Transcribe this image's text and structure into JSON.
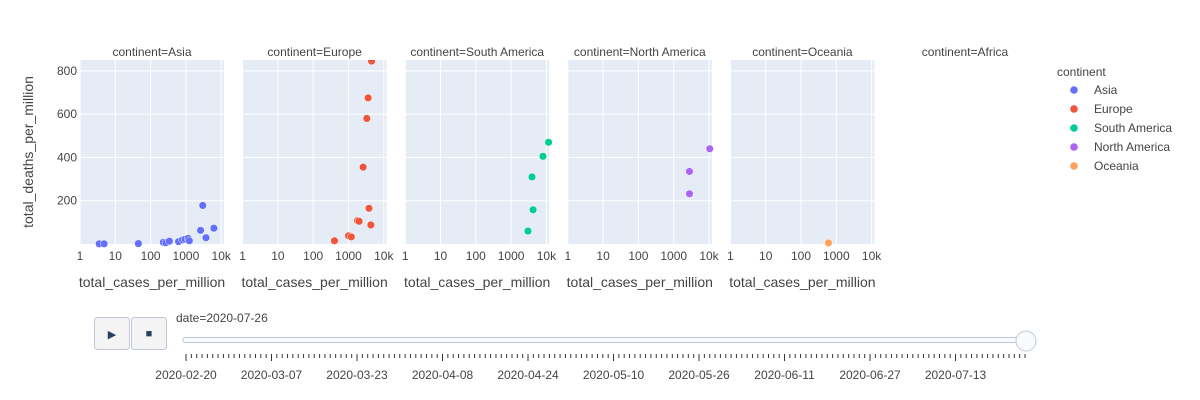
{
  "chart_data": {
    "type": "scatter",
    "x_scale": "log",
    "y_scale": "linear",
    "xlabel": "total_cases_per_million",
    "ylabel": "total_deaths_per_million",
    "xlim": [
      1,
      12000
    ],
    "ylim": [
      0,
      850
    ],
    "x_ticks": [
      {
        "value": 1,
        "label": "1"
      },
      {
        "value": 10,
        "label": "10"
      },
      {
        "value": 100,
        "label": "100"
      },
      {
        "value": 1000,
        "label": "1000"
      },
      {
        "value": 10000,
        "label": "10k"
      }
    ],
    "y_ticks": [
      {
        "value": 200,
        "label": "200"
      },
      {
        "value": 400,
        "label": "400"
      },
      {
        "value": 600,
        "label": "600"
      },
      {
        "value": 800,
        "label": "800"
      }
    ],
    "grid": true,
    "legend_title": "continent",
    "legend_position": "right",
    "panels": [
      {
        "title": "continent=Asia",
        "name": "Asia",
        "color": "#636efa",
        "points": [
          {
            "x": 3.5,
            "y": 1
          },
          {
            "x": 4.8,
            "y": 1
          },
          {
            "x": 45,
            "y": 2
          },
          {
            "x": 230,
            "y": 8
          },
          {
            "x": 270,
            "y": 6
          },
          {
            "x": 340,
            "y": 13
          },
          {
            "x": 620,
            "y": 11
          },
          {
            "x": 800,
            "y": 19
          },
          {
            "x": 950,
            "y": 22
          },
          {
            "x": 1150,
            "y": 26
          },
          {
            "x": 1250,
            "y": 15
          },
          {
            "x": 2600,
            "y": 63
          },
          {
            "x": 3000,
            "y": 178
          },
          {
            "x": 3700,
            "y": 29
          },
          {
            "x": 6200,
            "y": 73
          }
        ]
      },
      {
        "title": "continent=Europe",
        "name": "Europe",
        "color": "#EF553B",
        "points": [
          {
            "x": 400,
            "y": 15
          },
          {
            "x": 1000,
            "y": 38
          },
          {
            "x": 1200,
            "y": 33
          },
          {
            "x": 1800,
            "y": 108
          },
          {
            "x": 2000,
            "y": 105
          },
          {
            "x": 2600,
            "y": 355
          },
          {
            "x": 3300,
            "y": 580
          },
          {
            "x": 3600,
            "y": 675
          },
          {
            "x": 3800,
            "y": 165
          },
          {
            "x": 4300,
            "y": 88
          },
          {
            "x": 4500,
            "y": 845
          }
        ]
      },
      {
        "title": "continent=South America",
        "name": "South America",
        "color": "#00cc96",
        "points": [
          {
            "x": 3000,
            "y": 60
          },
          {
            "x": 3900,
            "y": 310
          },
          {
            "x": 4200,
            "y": 158
          },
          {
            "x": 8000,
            "y": 405
          },
          {
            "x": 11500,
            "y": 470
          }
        ]
      },
      {
        "title": "continent=North America",
        "name": "North America",
        "color": "#ab63fa",
        "points": [
          {
            "x": 2800,
            "y": 335
          },
          {
            "x": 2800,
            "y": 232
          },
          {
            "x": 10500,
            "y": 440
          }
        ]
      },
      {
        "title": "continent=Oceania",
        "name": "Oceania",
        "color": "#FFA15A",
        "points": [
          {
            "x": 600,
            "y": 5
          }
        ]
      },
      {
        "title": "continent=Africa",
        "name": "Africa",
        "color": "#19d3f3",
        "points": []
      }
    ]
  },
  "slider": {
    "current_label": "date=2020-07-26",
    "value_fraction": 1.0,
    "step_count": 158,
    "tick_labels": [
      "2020-02-20",
      "2020-03-07",
      "2020-03-23",
      "2020-04-08",
      "2020-04-24",
      "2020-05-10",
      "2020-05-26",
      "2020-06-11",
      "2020-06-27",
      "2020-07-13"
    ]
  },
  "controls": {
    "play_icon": "▶",
    "stop_icon": "■"
  }
}
